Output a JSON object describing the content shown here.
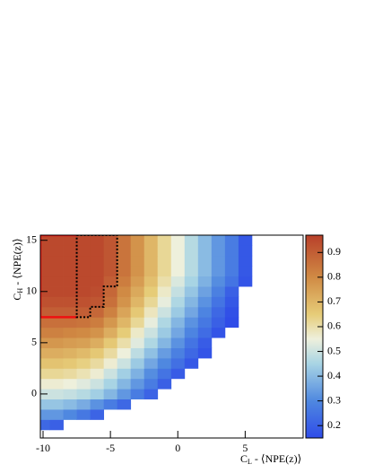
{
  "chart_data": {
    "type": "heatmap",
    "xbins": [
      -10.5,
      -9.5,
      -8.5,
      -7.5,
      -6.5,
      -5.5,
      -4.5,
      -3.5,
      -2.5,
      -1.5,
      -0.5,
      0.5,
      1.5,
      2.5,
      3.5,
      4.5,
      5.5
    ],
    "ybins": [
      -3.5,
      -2.5,
      -1.5,
      -0.5,
      0.5,
      1.5,
      2.5,
      3.5,
      4.5,
      5.5,
      6.5,
      7.5,
      8.5,
      9.5,
      10.5,
      11.5,
      12.5,
      13.5,
      14.5,
      15.5
    ],
    "z": [
      [
        0.22,
        0.2,
        null,
        null,
        null,
        null,
        null,
        null,
        null,
        null,
        null,
        null,
        null,
        null,
        null,
        null
      ],
      [
        0.33,
        0.33,
        0.3,
        0.26,
        0.21,
        null,
        null,
        null,
        null,
        null,
        null,
        null,
        null,
        null,
        null,
        null
      ],
      [
        0.42,
        0.42,
        0.4,
        0.37,
        0.32,
        0.27,
        0.22,
        null,
        null,
        null,
        null,
        null,
        null,
        null,
        null,
        null
      ],
      [
        0.5,
        0.5,
        0.49,
        0.47,
        0.44,
        0.39,
        0.33,
        0.27,
        0.21,
        null,
        null,
        null,
        null,
        null,
        null,
        null
      ],
      [
        0.56,
        0.56,
        0.55,
        0.53,
        0.5,
        0.45,
        0.39,
        0.33,
        0.27,
        0.2,
        null,
        null,
        null,
        null,
        null,
        null
      ],
      [
        0.62,
        0.62,
        0.61,
        0.59,
        0.56,
        0.5,
        0.44,
        0.38,
        0.31,
        0.25,
        0.19,
        null,
        null,
        null,
        null,
        null
      ],
      [
        0.67,
        0.67,
        0.66,
        0.64,
        0.61,
        0.56,
        0.5,
        0.43,
        0.36,
        0.3,
        0.24,
        0.18,
        null,
        null,
        null,
        null
      ],
      [
        0.72,
        0.72,
        0.71,
        0.69,
        0.66,
        0.61,
        0.55,
        0.48,
        0.41,
        0.34,
        0.28,
        0.22,
        0.17,
        null,
        null,
        null
      ],
      [
        0.77,
        0.77,
        0.76,
        0.75,
        0.72,
        0.66,
        0.6,
        0.53,
        0.46,
        0.39,
        0.32,
        0.25,
        0.19,
        null,
        null,
        null
      ],
      [
        0.82,
        0.82,
        0.81,
        0.8,
        0.78,
        0.72,
        0.65,
        0.57,
        0.5,
        0.43,
        0.36,
        0.29,
        0.23,
        0.17,
        null,
        null
      ],
      [
        0.86,
        0.86,
        0.86,
        0.85,
        0.83,
        0.77,
        0.7,
        0.62,
        0.54,
        0.46,
        0.39,
        0.32,
        0.26,
        0.2,
        0.15,
        null
      ],
      [
        0.9,
        0.9,
        0.9,
        0.9,
        0.88,
        0.82,
        0.74,
        0.66,
        0.58,
        0.5,
        0.43,
        0.36,
        0.29,
        0.22,
        0.16,
        null
      ],
      [
        0.93,
        0.93,
        0.93,
        0.93,
        0.92,
        0.86,
        0.78,
        0.7,
        0.62,
        0.54,
        0.46,
        0.39,
        0.32,
        0.25,
        0.18,
        null
      ],
      [
        0.95,
        0.95,
        0.95,
        0.95,
        0.94,
        0.88,
        0.8,
        0.73,
        0.65,
        0.57,
        0.49,
        0.42,
        0.35,
        0.28,
        0.2,
        null
      ],
      [
        0.95,
        0.95,
        0.95,
        0.95,
        0.95,
        0.9,
        0.83,
        0.76,
        0.68,
        0.6,
        0.52,
        0.45,
        0.38,
        0.31,
        0.25,
        0.17
      ],
      [
        0.95,
        0.95,
        0.95,
        0.95,
        0.95,
        0.92,
        0.85,
        0.78,
        0.7,
        0.62,
        0.55,
        0.47,
        0.4,
        0.33,
        0.27,
        0.18
      ],
      [
        0.95,
        0.95,
        0.95,
        0.95,
        0.95,
        0.92,
        0.85,
        0.78,
        0.7,
        0.62,
        0.55,
        0.47,
        0.4,
        0.33,
        0.27,
        0.18
      ],
      [
        0.95,
        0.95,
        0.95,
        0.95,
        0.95,
        0.92,
        0.85,
        0.78,
        0.7,
        0.62,
        0.55,
        0.47,
        0.4,
        0.33,
        0.27,
        0.18
      ],
      [
        0.95,
        0.95,
        0.95,
        0.95,
        0.95,
        0.92,
        0.85,
        0.78,
        0.7,
        0.62,
        0.55,
        0.47,
        0.4,
        0.33,
        0.27,
        0.18
      ]
    ],
    "xlim": [
      -10.2,
      9.3
    ],
    "ylim": [
      -4.3,
      15.5
    ],
    "xticks": [
      -10,
      -5,
      0,
      5
    ],
    "yticks": [
      0,
      5,
      10,
      15
    ],
    "clim": [
      0.15,
      0.97
    ],
    "cticks": [
      0.2,
      0.3,
      0.4,
      0.5,
      0.6,
      0.7,
      0.8,
      0.9
    ],
    "colorscale": [
      [
        0.15,
        "#2f4ce8"
      ],
      [
        0.3,
        "#4f88e0"
      ],
      [
        0.45,
        "#a8d4e4"
      ],
      [
        0.55,
        "#eef0dc"
      ],
      [
        0.65,
        "#e6cc78"
      ],
      [
        0.8,
        "#d08a44"
      ],
      [
        0.97,
        "#b8402a"
      ]
    ],
    "xlabel": {
      "main": "C",
      "sub": "L",
      "rest": " - ⟨NPE(z)⟩"
    },
    "ylabel": {
      "main": "C",
      "sub": "H",
      "rest": " - ⟨NPE(z)⟩"
    },
    "contours": [
      {
        "color": "#ee1111",
        "dash": false,
        "x": [
          -7.5,
          -10.2,
          -10.2,
          -7.5
        ],
        "y": [
          15.5,
          15.5,
          7.5,
          7.5
        ]
      },
      {
        "color": "#000000",
        "dash": true,
        "x": [
          -7.5,
          -4.5,
          -4.5,
          -5.5,
          -5.5,
          -6.5,
          -6.5,
          -7.5,
          -7.5
        ],
        "y": [
          15.5,
          15.5,
          10.5,
          10.5,
          8.5,
          8.5,
          7.5,
          7.5,
          15.5
        ]
      }
    ]
  }
}
